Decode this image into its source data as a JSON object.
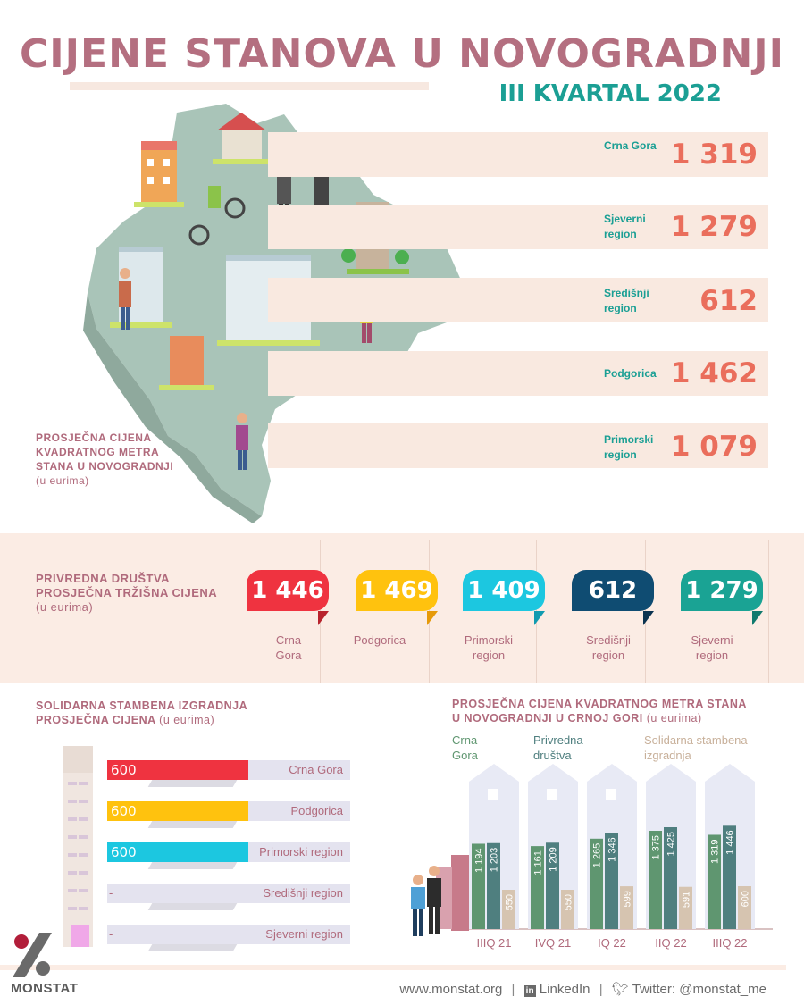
{
  "header": {
    "title": "CIJENE STANOVA U NOVOGRADNJI",
    "subtitle": "III KVARTAL 2022"
  },
  "regions": [
    {
      "name": "Crna Gora",
      "value": "1 319"
    },
    {
      "name": "Sjeverni region",
      "value": "1 279"
    },
    {
      "name": "Središnji region",
      "value": "612"
    },
    {
      "name": "Podgorica",
      "value": "1 462"
    },
    {
      "name": "Primorski region",
      "value": "1 079"
    }
  ],
  "map_caption": {
    "line1": "PROSJEČNA CIJENA",
    "line2": "KVADRATNOG METRA",
    "line3": "STANA U NOVOGRADNJI",
    "unit": "(u eurima)"
  },
  "companies": {
    "caption_line1": "PRIVREDNA DRUŠTVA",
    "caption_line2": "PROSJEČNA TRŽIŠNA CIJENA",
    "unit": "(u eurima)",
    "items": [
      {
        "value": "1 446",
        "label": "Crna Gora",
        "color": "#ef3340"
      },
      {
        "value": "1 469",
        "label": "Podgorica",
        "color": "#ffc20e"
      },
      {
        "value": "1 409",
        "label": "Primorski region",
        "color": "#1cc7e0"
      },
      {
        "value": "612",
        "label": "Središnji region",
        "color": "#0f4c72"
      },
      {
        "value": "1 279",
        "label": "Sjeverni region",
        "color": "#1aa394"
      }
    ]
  },
  "solidarity": {
    "caption_line1": "SOLIDARNA STAMBENA IZGRADNJA",
    "caption_line2": "PROSJEČNA CIJENA",
    "unit": "(u eurima)",
    "rows": [
      {
        "label": "Crna Gora",
        "value": "600",
        "color": "#ef3340"
      },
      {
        "label": "Podgorica",
        "value": "600",
        "color": "#ffc20e"
      },
      {
        "label": "Primorski region",
        "value": "600",
        "color": "#1cc7e0"
      },
      {
        "label": "Središnji region",
        "value": "-",
        "color": ""
      },
      {
        "label": "Sjeverni region",
        "value": "-",
        "color": ""
      }
    ]
  },
  "right_chart": {
    "caption_line1": "PROSJEČNA CIJENA KVADRATNOG METRA STANA",
    "caption_line2": "U NOVOGRADNJI U CRNOJ GORI",
    "unit": "(u eurima)",
    "legend": [
      {
        "line1": "Crna",
        "line2": "Gora",
        "color": "#5f9670"
      },
      {
        "line1": "Privredna",
        "line2": "društva",
        "color": "#4f7f7f"
      },
      {
        "line1": "Solidarna stambena",
        "line2": "izgradnja",
        "color": "#c8b09a"
      }
    ]
  },
  "chart_data": {
    "type": "bar",
    "categories": [
      "IIIQ 21",
      "IVQ 21",
      "IQ 22",
      "IIQ 22",
      "IIIQ 22"
    ],
    "series": [
      {
        "name": "Crna Gora",
        "values": [
          1194,
          1161,
          1265,
          1375,
          1319
        ],
        "labels": [
          "1 194",
          "1 161",
          "1 265",
          "1 375",
          "1 319"
        ],
        "color": "#5f9670"
      },
      {
        "name": "Privredna društva",
        "values": [
          1203,
          1209,
          1346,
          1425,
          1446
        ],
        "labels": [
          "1 203",
          "1 209",
          "1 346",
          "1 425",
          "1 446"
        ],
        "color": "#4f7f7f"
      },
      {
        "name": "Solidarna stambena izgradnja",
        "values": [
          550,
          550,
          599,
          591,
          600
        ],
        "labels": [
          "550",
          "550",
          "599",
          "591",
          "600"
        ],
        "color": "#d6c4b0"
      }
    ]
  },
  "footer": {
    "website": "www.monstat.org",
    "linkedin": "LinkedIn",
    "twitter": "Twitter: @monstat_me",
    "logo": "MONSTAT"
  }
}
